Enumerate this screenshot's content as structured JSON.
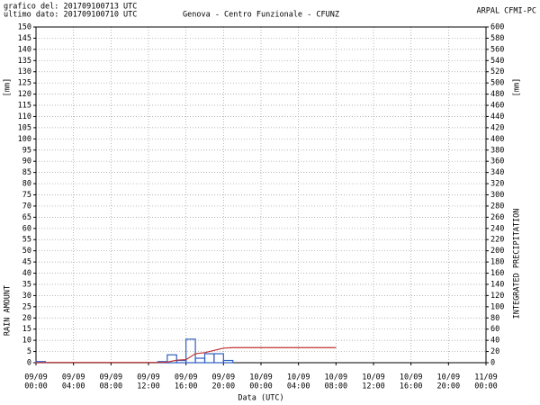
{
  "chart_data": {
    "type": "bar",
    "header": {
      "left": [
        "grafico del: 201709100713 UTC",
        "ultimo dato: 201709100710 UTC"
      ],
      "right": "ARPAL CFMI-PC"
    },
    "title": "Genova - Centro Funzionale - CFUNZ",
    "y_unit": "[mm]",
    "y2_unit": "[mm]",
    "ylabel": "RAIN AMOUNT",
    "y2label": "INTEGRATED PRECIPITATION",
    "xlabel": "Data (UTC)",
    "xlim": [
      0,
      48
    ],
    "xticks": [
      {
        "value": 0,
        "label": [
          "09/09",
          "00:00"
        ]
      },
      {
        "value": 4,
        "label": [
          "09/09",
          "04:00"
        ]
      },
      {
        "value": 8,
        "label": [
          "09/09",
          "08:00"
        ]
      },
      {
        "value": 12,
        "label": [
          "09/09",
          "12:00"
        ]
      },
      {
        "value": 16,
        "label": [
          "09/09",
          "16:00"
        ]
      },
      {
        "value": 20,
        "label": [
          "09/09",
          "20:00"
        ]
      },
      {
        "value": 24,
        "label": [
          "10/09",
          "00:00"
        ]
      },
      {
        "value": 28,
        "label": [
          "10/09",
          "04:00"
        ]
      },
      {
        "value": 32,
        "label": [
          "10/09",
          "08:00"
        ]
      },
      {
        "value": 36,
        "label": [
          "10/09",
          "12:00"
        ]
      },
      {
        "value": 40,
        "label": [
          "10/09",
          "16:00"
        ]
      },
      {
        "value": 44,
        "label": [
          "10/09",
          "20:00"
        ]
      },
      {
        "value": 48,
        "label": [
          "11/09",
          "00:00"
        ]
      }
    ],
    "ylim": [
      0,
      150
    ],
    "yticks": [
      0,
      5,
      10,
      15,
      20,
      25,
      30,
      35,
      40,
      45,
      50,
      55,
      60,
      65,
      70,
      75,
      80,
      85,
      90,
      95,
      100,
      105,
      110,
      115,
      120,
      125,
      130,
      135,
      140,
      145,
      150
    ],
    "y2lim": [
      0,
      600
    ],
    "y2ticks": [
      0,
      20,
      40,
      60,
      80,
      100,
      120,
      140,
      160,
      180,
      200,
      220,
      240,
      260,
      280,
      300,
      320,
      340,
      360,
      380,
      400,
      420,
      440,
      460,
      480,
      500,
      520,
      540,
      560,
      580,
      600
    ],
    "grid": true,
    "series": [
      {
        "color": "#2f5fc0",
        "bar_width": 1,
        "x": [
          0,
          1,
          2,
          3,
          4,
          5,
          6,
          7,
          8,
          9,
          10,
          11,
          12,
          13,
          14,
          15,
          16,
          17,
          18,
          19,
          20,
          21,
          22,
          23,
          24,
          25,
          26,
          27,
          28,
          29,
          30,
          31
        ],
        "values": [
          0.5,
          0,
          0,
          0,
          0,
          0,
          0,
          0,
          0,
          0,
          0,
          0,
          0,
          0.5,
          3.5,
          1,
          10.5,
          2,
          4,
          4,
          1,
          0,
          0,
          0,
          0,
          0,
          0,
          0,
          0,
          0,
          0,
          0
        ]
      },
      {
        "color": "#c03030",
        "axis": "y2",
        "x": [
          0,
          1,
          13,
          14,
          15,
          16,
          17,
          18,
          19,
          20,
          21,
          32
        ],
        "values": [
          0,
          0.5,
          0.5,
          1,
          4.5,
          5.5,
          16,
          18,
          22,
          26,
          27,
          27
        ]
      }
    ]
  }
}
